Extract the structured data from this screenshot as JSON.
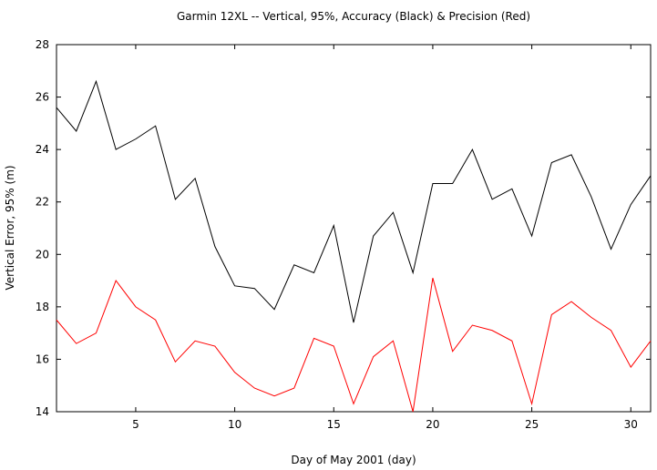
{
  "chart_data": {
    "type": "line",
    "title": "Garmin 12XL -- Vertical, 95%, Accuracy (Black) & Precision (Red)",
    "xlabel": "Day of May 2001  (day)",
    "ylabel": "Vertical Error, 95%  (m)",
    "xlim": [
      1,
      31
    ],
    "ylim": [
      14,
      28
    ],
    "xticks": [
      5,
      10,
      15,
      20,
      25,
      30
    ],
    "yticks": [
      14,
      16,
      18,
      20,
      22,
      24,
      26,
      28
    ],
    "grid": false,
    "x": [
      1,
      2,
      3,
      4,
      5,
      6,
      7,
      8,
      9,
      10,
      11,
      12,
      13,
      14,
      15,
      16,
      17,
      18,
      19,
      20,
      21,
      22,
      23,
      24,
      25,
      26,
      27,
      28,
      29,
      30,
      31
    ],
    "series": [
      {
        "name": "Accuracy",
        "color": "#000000",
        "values": [
          25.6,
          24.7,
          26.6,
          24.0,
          24.4,
          24.9,
          22.1,
          22.9,
          20.3,
          18.8,
          18.7,
          17.9,
          19.6,
          19.3,
          21.1,
          17.4,
          20.7,
          21.6,
          19.3,
          22.7,
          22.7,
          24.0,
          22.1,
          22.5,
          20.7,
          23.5,
          23.8,
          22.2,
          20.2,
          21.9,
          23.0
        ]
      },
      {
        "name": "Precision",
        "color": "#ff0000",
        "values": [
          17.5,
          16.6,
          17.0,
          19.0,
          18.0,
          17.5,
          15.9,
          16.7,
          16.5,
          15.5,
          14.9,
          14.6,
          14.9,
          16.8,
          16.5,
          14.3,
          16.1,
          16.7,
          14.0,
          19.1,
          16.3,
          17.3,
          17.1,
          16.7,
          14.3,
          17.7,
          18.2,
          17.6,
          17.1,
          15.7,
          16.7
        ]
      }
    ]
  }
}
